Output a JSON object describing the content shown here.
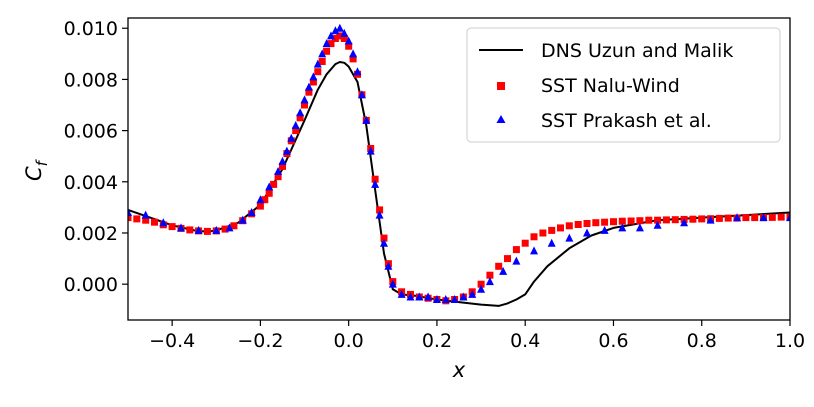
{
  "chart_data": {
    "type": "line+scatter",
    "xlabel": "x",
    "ylabel": "C",
    "ylabel_subscript": "f",
    "xlim": [
      -0.5,
      1.0
    ],
    "ylim": [
      -0.0014,
      0.0104
    ],
    "xticks": [
      -0.4,
      -0.2,
      0.0,
      0.2,
      0.4,
      0.6,
      0.8,
      1.0
    ],
    "xtick_labels": [
      "−0.4",
      "−0.2",
      "0.0",
      "0.2",
      "0.4",
      "0.6",
      "0.8",
      "1.0"
    ],
    "yticks": [
      0.0,
      0.002,
      0.004,
      0.006,
      0.008,
      0.01
    ],
    "ytick_labels": [
      "0.000",
      "0.002",
      "0.004",
      "0.006",
      "0.008",
      "0.010"
    ],
    "legend_position": "top-right",
    "series": [
      {
        "name": "DNS Uzun and Malik",
        "style": "line",
        "color": "#000000",
        "x": [
          -0.5,
          -0.45,
          -0.4,
          -0.35,
          -0.32,
          -0.3,
          -0.25,
          -0.2,
          -0.15,
          -0.1,
          -0.07,
          -0.05,
          -0.03,
          -0.02,
          -0.01,
          0.0,
          0.02,
          0.04,
          0.06,
          0.08,
          0.1,
          0.12,
          0.15,
          0.2,
          0.25,
          0.3,
          0.34,
          0.36,
          0.38,
          0.4,
          0.42,
          0.45,
          0.5,
          0.55,
          0.6,
          0.7,
          0.8,
          0.9,
          1.0
        ],
        "y": [
          0.0029,
          0.0026,
          0.0023,
          0.0021,
          0.00205,
          0.0021,
          0.0024,
          0.0031,
          0.0045,
          0.0064,
          0.0076,
          0.0082,
          0.0086,
          0.00868,
          0.00865,
          0.0085,
          0.0079,
          0.0062,
          0.0037,
          0.0012,
          -0.0002,
          -0.0004,
          -0.00045,
          -0.0006,
          -0.0007,
          -0.0008,
          -0.00085,
          -0.00075,
          -0.0006,
          -0.0004,
          0.0001,
          0.0007,
          0.0014,
          0.0019,
          0.0022,
          0.0025,
          0.0026,
          0.0027,
          0.0028
        ]
      },
      {
        "name": "SST Nalu-Wind",
        "style": "square",
        "color": "#ff0000",
        "x": [
          -0.5,
          -0.48,
          -0.46,
          -0.44,
          -0.42,
          -0.4,
          -0.38,
          -0.36,
          -0.34,
          -0.32,
          -0.3,
          -0.28,
          -0.26,
          -0.24,
          -0.22,
          -0.2,
          -0.19,
          -0.18,
          -0.17,
          -0.16,
          -0.15,
          -0.14,
          -0.13,
          -0.12,
          -0.11,
          -0.1,
          -0.09,
          -0.08,
          -0.07,
          -0.06,
          -0.05,
          -0.04,
          -0.03,
          -0.02,
          -0.01,
          0.0,
          0.01,
          0.02,
          0.03,
          0.04,
          0.05,
          0.06,
          0.07,
          0.08,
          0.09,
          0.1,
          0.12,
          0.14,
          0.16,
          0.18,
          0.2,
          0.22,
          0.24,
          0.26,
          0.28,
          0.3,
          0.32,
          0.34,
          0.36,
          0.38,
          0.4,
          0.42,
          0.44,
          0.46,
          0.48,
          0.5,
          0.52,
          0.54,
          0.56,
          0.58,
          0.6,
          0.62,
          0.64,
          0.66,
          0.68,
          0.7,
          0.72,
          0.74,
          0.76,
          0.78,
          0.8,
          0.82,
          0.84,
          0.86,
          0.88,
          0.9,
          0.92,
          0.94,
          0.96,
          0.98,
          1.0
        ],
        "y": [
          0.0026,
          0.00255,
          0.0025,
          0.00242,
          0.00232,
          0.00225,
          0.00218,
          0.00212,
          0.00208,
          0.00206,
          0.00208,
          0.00215,
          0.00228,
          0.00248,
          0.00275,
          0.00305,
          0.0033,
          0.00355,
          0.0039,
          0.0042,
          0.0046,
          0.0051,
          0.0056,
          0.006,
          0.0065,
          0.007,
          0.0075,
          0.0079,
          0.0083,
          0.0087,
          0.0091,
          0.0094,
          0.0096,
          0.0097,
          0.0096,
          0.0093,
          0.0088,
          0.0082,
          0.0074,
          0.0064,
          0.0053,
          0.0041,
          0.0029,
          0.0018,
          0.0008,
          0.0001,
          -0.0003,
          -0.0004,
          -0.0005,
          -0.00055,
          -0.0006,
          -0.00065,
          -0.0006,
          -0.0005,
          -0.0003,
          0.0,
          0.00035,
          0.0007,
          0.001,
          0.00135,
          0.0016,
          0.00185,
          0.002,
          0.0021,
          0.0022,
          0.00228,
          0.00233,
          0.00237,
          0.0024,
          0.00242,
          0.00244,
          0.00246,
          0.00247,
          0.00248,
          0.0025,
          0.0025,
          0.00251,
          0.00252,
          0.00253,
          0.00254,
          0.00255,
          0.00256,
          0.00257,
          0.00258,
          0.00258,
          0.0026,
          0.0026,
          0.0026,
          0.00261,
          0.00262,
          0.00262
        ]
      },
      {
        "name": "SST Prakash et al.",
        "style": "triangle",
        "color": "#0000ff",
        "x": [
          -0.5,
          -0.46,
          -0.42,
          -0.38,
          -0.34,
          -0.3,
          -0.27,
          -0.24,
          -0.22,
          -0.2,
          -0.18,
          -0.16,
          -0.15,
          -0.14,
          -0.13,
          -0.12,
          -0.11,
          -0.1,
          -0.09,
          -0.08,
          -0.07,
          -0.06,
          -0.05,
          -0.04,
          -0.03,
          -0.02,
          -0.01,
          0.0,
          0.01,
          0.02,
          0.03,
          0.04,
          0.05,
          0.06,
          0.07,
          0.08,
          0.09,
          0.1,
          0.12,
          0.14,
          0.16,
          0.18,
          0.2,
          0.22,
          0.24,
          0.26,
          0.28,
          0.3,
          0.32,
          0.35,
          0.38,
          0.42,
          0.46,
          0.5,
          0.54,
          0.58,
          0.62,
          0.66,
          0.7,
          0.76,
          0.82,
          0.88,
          0.94,
          1.0
        ],
        "y": [
          0.0028,
          0.0027,
          0.0024,
          0.0022,
          0.0021,
          0.0021,
          0.0022,
          0.0025,
          0.0028,
          0.0033,
          0.0038,
          0.0044,
          0.0048,
          0.0052,
          0.0057,
          0.0062,
          0.0067,
          0.0072,
          0.0077,
          0.0081,
          0.0086,
          0.009,
          0.0094,
          0.0097,
          0.0099,
          0.01,
          0.0098,
          0.0095,
          0.009,
          0.0083,
          0.0074,
          0.0064,
          0.0052,
          0.0039,
          0.0027,
          0.0016,
          0.0007,
          0.0,
          -0.0004,
          -0.0005,
          -0.0005,
          -0.0005,
          -0.0006,
          -0.0006,
          -0.0006,
          -0.0005,
          -0.0004,
          -0.0002,
          0.0001,
          0.0005,
          0.0009,
          0.0013,
          0.0016,
          0.0018,
          0.002,
          0.0021,
          0.0022,
          0.0022,
          0.0023,
          0.0024,
          0.0025,
          0.0026,
          0.0026,
          0.0026
        ]
      }
    ]
  }
}
